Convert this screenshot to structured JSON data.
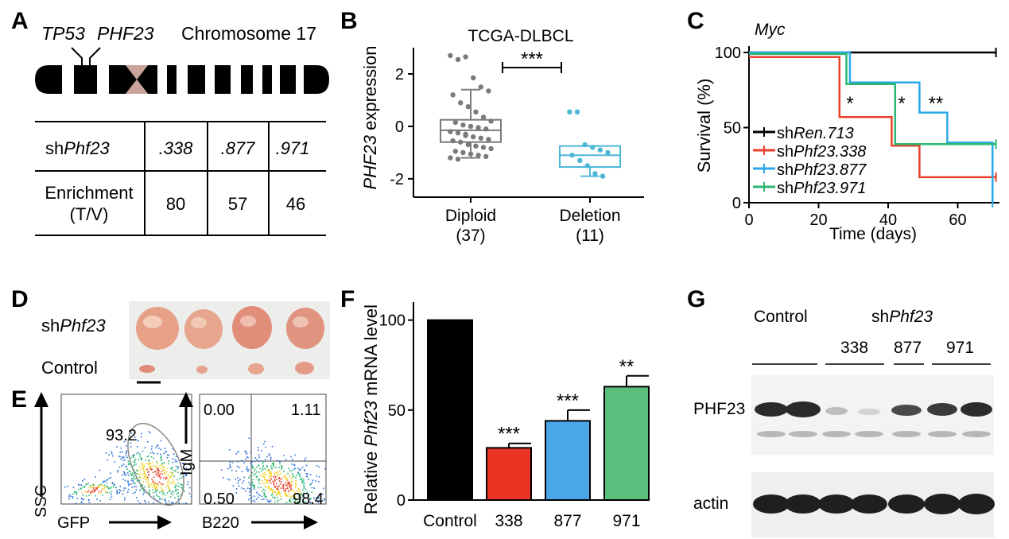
{
  "panels": {
    "a": "A",
    "b": "B",
    "c": "C",
    "d": "D",
    "e": "E",
    "f": "F",
    "g": "G"
  },
  "panel_a": {
    "gene1": "TP53",
    "gene2": "PHF23",
    "chromosome_label": "Chromosome 17",
    "table": {
      "row1_label_prefix": "sh",
      "row1_label_gene": "Phf23",
      "hairpins": [
        ".338",
        ".877",
        ".971"
      ],
      "row2_label_line1": "Enrichment",
      "row2_label_line2": "(T/V)",
      "enrichment": [
        "80",
        "57",
        "46"
      ]
    }
  },
  "panel_b": {
    "chart_data": {
      "type": "box",
      "title": "TCGA-DLBCL",
      "ylabel_gene": "PHF23",
      "ylabel_rest": " expression",
      "yticks": [
        "2",
        "0",
        "-2"
      ],
      "ylim": [
        -2.7,
        3.0
      ],
      "categories": [
        "Diploid",
        "Deletion"
      ],
      "counts": [
        "(37)",
        "(11)"
      ],
      "boxes": [
        {
          "name": "Diploid",
          "q1": -0.6,
          "median": -0.15,
          "q3": 0.25,
          "whisker_low": -1.2,
          "whisker_high": 1.4,
          "color": "#7a7a7a"
        },
        {
          "name": "Deletion",
          "q1": -1.55,
          "median": -1.1,
          "q3": -0.75,
          "whisker_low": -1.9,
          "whisker_high": -0.75,
          "color": "#4cb8d8"
        }
      ],
      "points": {
        "Diploid": [
          2.7,
          2.55,
          2.65,
          1.85,
          1.5,
          1.35,
          1.2,
          0.9,
          0.75,
          0.55,
          0.35,
          0.2,
          0.15,
          0.05,
          0.0,
          -0.05,
          -0.1,
          -0.2,
          -0.25,
          -0.3,
          -0.4,
          -0.45,
          -0.5,
          -0.55,
          -0.6,
          -0.7,
          -0.75,
          -0.8,
          -0.85,
          -0.95,
          -1.0,
          -1.05,
          -1.1,
          -1.15,
          -1.2,
          -1.25,
          -0.35
        ],
        "Deletion": [
          0.55,
          0.55,
          -0.7,
          -0.8,
          -0.9,
          -1.0,
          -1.1,
          -1.3,
          -1.5,
          -1.8,
          -1.9
        ]
      },
      "significance": "***"
    }
  },
  "panel_c": {
    "chart_data": {
      "type": "line",
      "title": "Myc",
      "xlabel": "Time (days)",
      "ylabel": "Survival (%)",
      "xticks": [
        "0",
        "20",
        "40",
        "60"
      ],
      "yticks": [
        "100",
        "50",
        "0"
      ],
      "xlim": [
        0,
        72
      ],
      "ylim": [
        0,
        100
      ],
      "series": [
        {
          "name_prefix": "sh",
          "name_italic": "Ren.713",
          "color": "#000000",
          "steps": [
            [
              0,
              100
            ],
            [
              71,
              100
            ]
          ]
        },
        {
          "name_prefix": "sh",
          "name_italic": "Phf23.338",
          "color": "#e8402a",
          "steps": [
            [
              0,
              97
            ],
            [
              26,
              97
            ],
            [
              26,
              57
            ],
            [
              41,
              57
            ],
            [
              41,
              38
            ],
            [
              49,
              38
            ],
            [
              49,
              17
            ],
            [
              71,
              17
            ]
          ]
        },
        {
          "name_prefix": "sh",
          "name_italic": "Phf23.877",
          "color": "#2aa8e8",
          "steps": [
            [
              0,
              100
            ],
            [
              29,
              100
            ],
            [
              29,
              80
            ],
            [
              49,
              80
            ],
            [
              49,
              60
            ],
            [
              57,
              60
            ],
            [
              57,
              40
            ],
            [
              70,
              40
            ],
            [
              70,
              0
            ]
          ]
        },
        {
          "name_prefix": "sh",
          "name_italic": "Phf23.971",
          "color": "#2bb673",
          "steps": [
            [
              0,
              99
            ],
            [
              28,
              99
            ],
            [
              28,
              79
            ],
            [
              42,
              79
            ],
            [
              42,
              39
            ],
            [
              71,
              39
            ]
          ]
        }
      ],
      "annotations": [
        "*",
        "*",
        "**"
      ]
    }
  },
  "panel_d": {
    "row1_prefix": "sh",
    "row1_gene": "Phf23",
    "row2": "Control"
  },
  "panel_e": {
    "plot1": {
      "y_axis": "SSC",
      "x_axis": "GFP",
      "gate_value": "93.2"
    },
    "plot2": {
      "y_axis": "IgM",
      "x_axis": "B220",
      "q_ul": "0.00",
      "q_ur": "1.11",
      "q_ll": "0.50",
      "q_lr": "98.4"
    }
  },
  "panel_f": {
    "chart_data": {
      "type": "bar",
      "ylabel_pre": "Relative ",
      "ylabel_gene": "Phf23",
      "ylabel_post": " mRNA level",
      "yticks": [
        "100",
        "50",
        "0"
      ],
      "ylim": [
        0,
        110
      ],
      "categories": [
        "Control",
        "338",
        "877",
        "971"
      ],
      "values": [
        100,
        29,
        44,
        63
      ],
      "errors": [
        0,
        2.5,
        6,
        6
      ],
      "colors": [
        "#000000",
        "#ea3323",
        "#4aa8e8",
        "#5abf7d"
      ],
      "significance": [
        "",
        "***",
        "***",
        "**"
      ]
    }
  },
  "panel_g": {
    "control": "Control",
    "sh_prefix": "sh",
    "sh_gene": "Phf23",
    "hairpins": [
      "338",
      "877",
      "971"
    ],
    "bands": [
      "PHF23",
      "actin"
    ]
  }
}
